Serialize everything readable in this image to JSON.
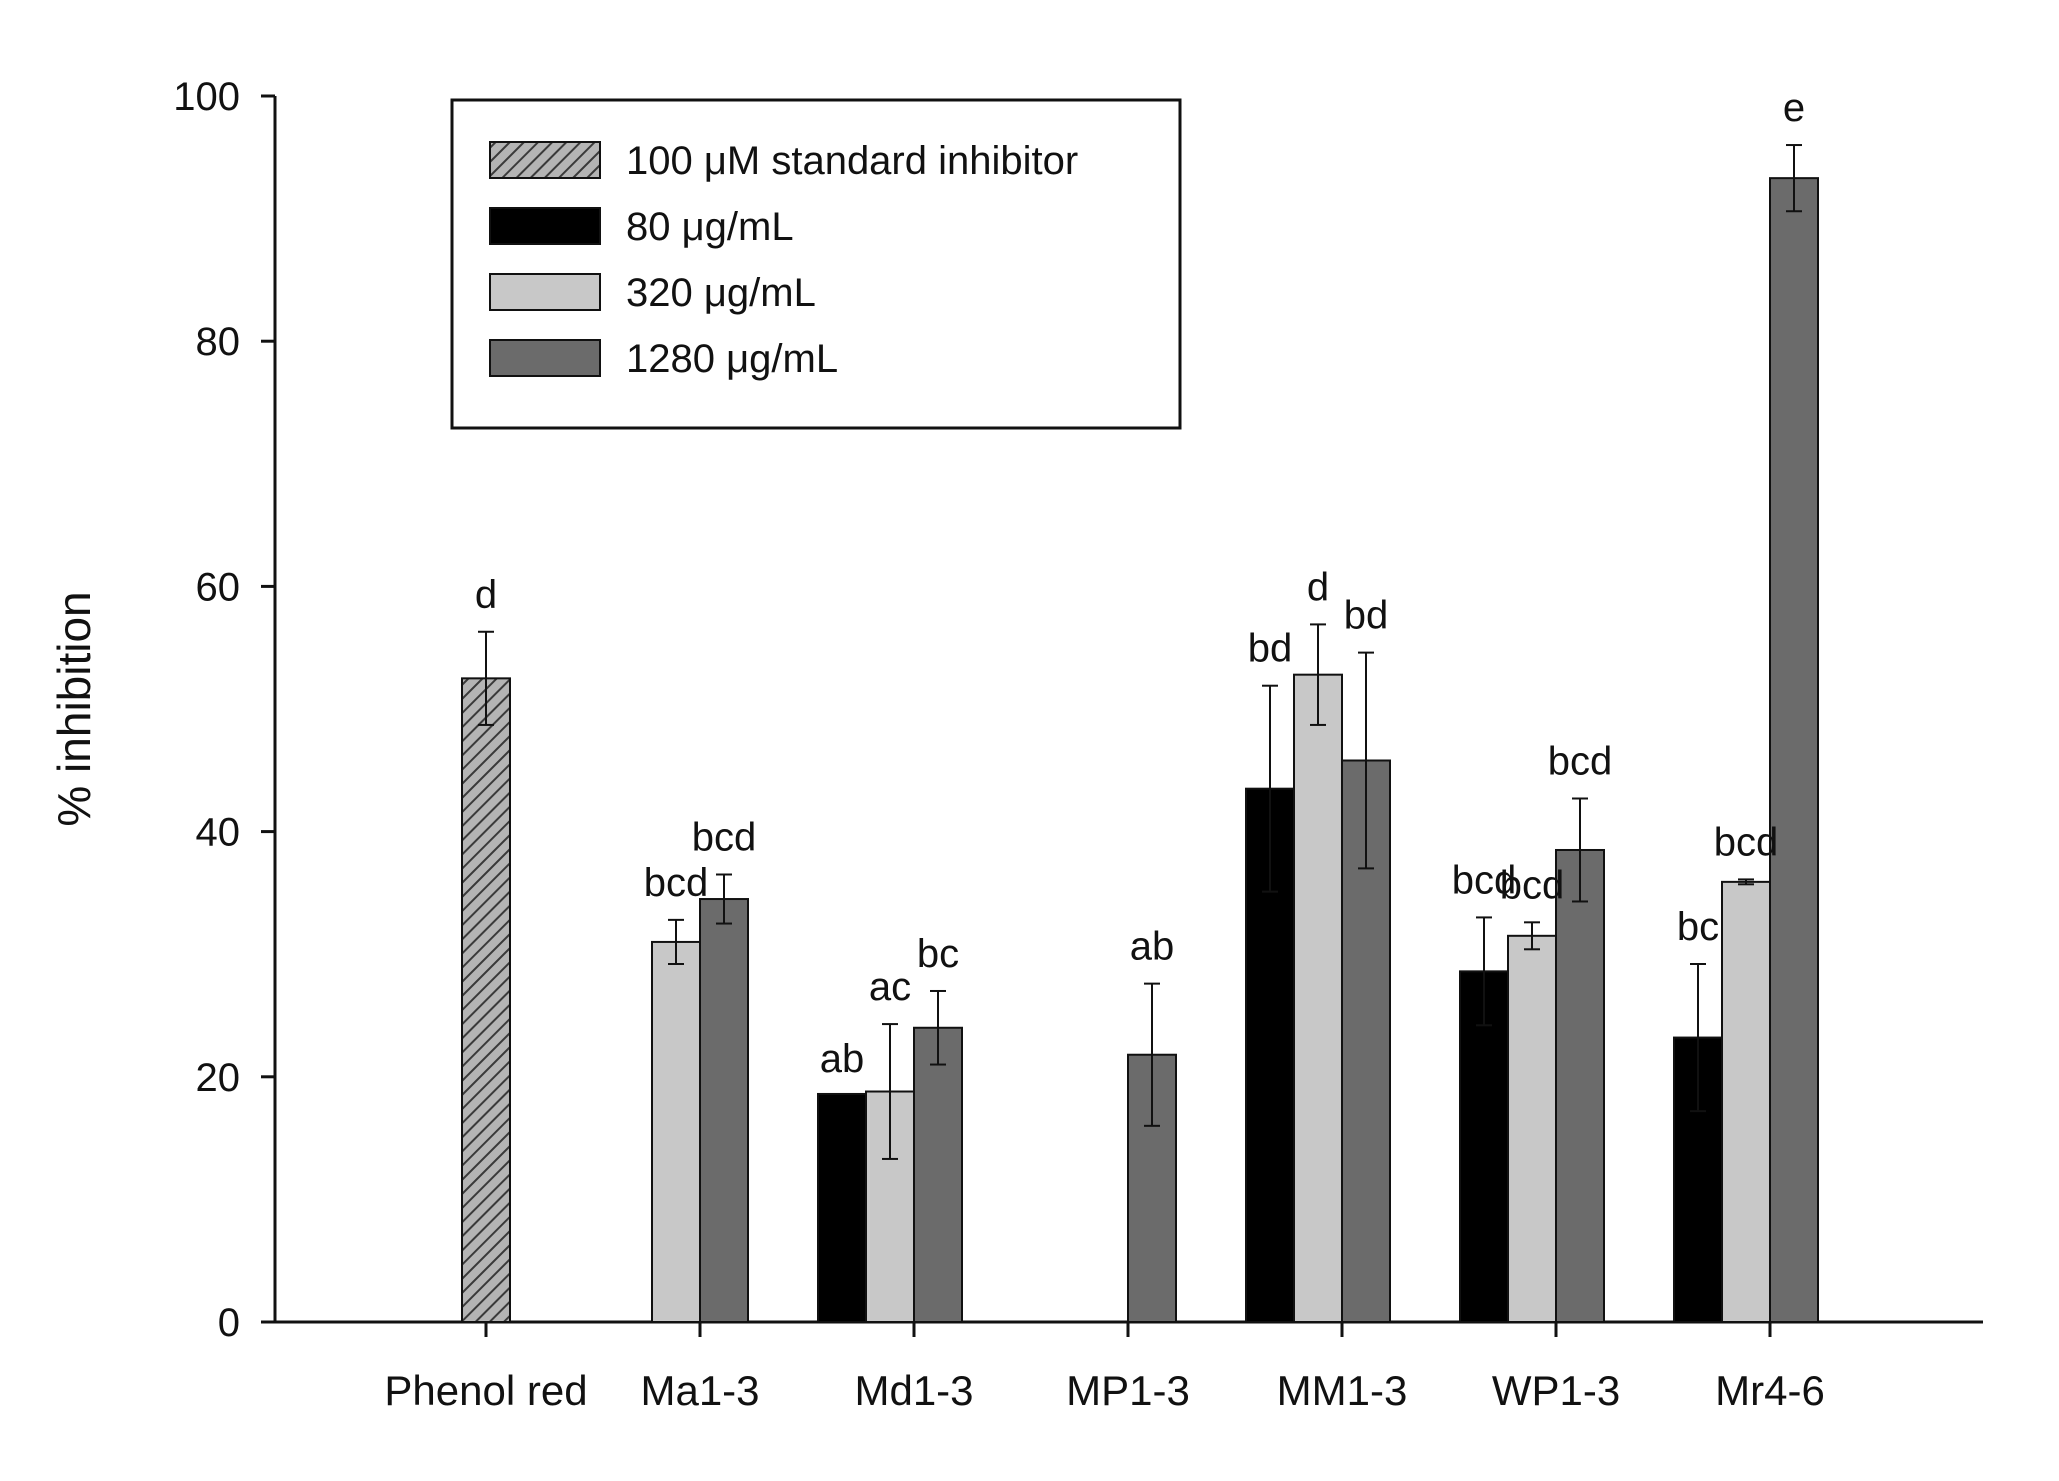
{
  "chart_data": {
    "type": "bar",
    "title": "",
    "xlabel": "",
    "ylabel": "% inhibition",
    "ylim": [
      0,
      100
    ],
    "yticks": [
      0,
      20,
      40,
      60,
      80,
      100
    ],
    "grid": false,
    "legend_position": "top-left",
    "categories": [
      "Phenol red",
      "Ma1-3",
      "Md1-3",
      "MP1-3",
      "MM1-3",
      "WP1-3",
      "Mr4-6"
    ],
    "series": [
      {
        "name": "100 μM standard inhibitor",
        "color": "#8a8a8a",
        "pattern": "hatch",
        "values": [
          52.5,
          null,
          null,
          null,
          null,
          null,
          null
        ],
        "errors": [
          3.8,
          null,
          null,
          null,
          null,
          null,
          null
        ],
        "labels": [
          "d",
          null,
          null,
          null,
          null,
          null,
          null
        ]
      },
      {
        "name": "80 μg/mL",
        "color": "#000000",
        "pattern": "solid",
        "values": [
          null,
          null,
          18.6,
          null,
          43.5,
          28.6,
          23.2
        ],
        "errors": [
          null,
          null,
          0,
          null,
          8.4,
          4.4,
          6.0
        ],
        "labels": [
          null,
          null,
          "ab",
          null,
          "bd",
          "bcd",
          "bc"
        ]
      },
      {
        "name": "320 μg/mL",
        "color": "#c8c8c8",
        "pattern": "solid",
        "values": [
          null,
          31.0,
          18.8,
          null,
          52.8,
          31.5,
          35.9
        ],
        "errors": [
          null,
          1.8,
          5.5,
          null,
          4.1,
          1.1,
          0.2
        ],
        "labels": [
          null,
          "bcd",
          "ac",
          null,
          "d",
          "bcd",
          "bcd"
        ]
      },
      {
        "name": "1280 μg/mL",
        "color": "#6b6b6b",
        "pattern": "solid",
        "values": [
          null,
          34.5,
          24.0,
          21.8,
          45.8,
          38.5,
          93.3
        ],
        "errors": [
          null,
          2.0,
          3.0,
          5.8,
          8.8,
          4.2,
          2.7
        ],
        "labels": [
          null,
          "bcd",
          "bc",
          "ab",
          "bd",
          "bcd",
          "e"
        ]
      }
    ]
  }
}
